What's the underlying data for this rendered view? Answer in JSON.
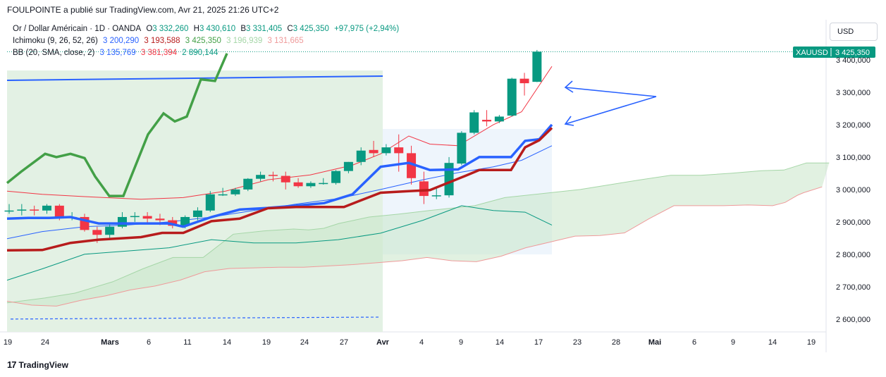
{
  "header": {
    "published": "FOULPOINTE a publié sur TradingView.com, Avr 21, 2025 21:26 UTC+2"
  },
  "legend": {
    "main": {
      "symbol": "Or / Dollar Américain · 1D · OANDA",
      "o_label": "O",
      "o": "3 332,260",
      "h_label": "H",
      "h": "3 430,610",
      "b_label": "B",
      "b": "3 331,405",
      "c_label": "C",
      "c": "3 425,350",
      "chg": "+97,975 (+2,94%)"
    },
    "ichimoku": {
      "label": "Ichimoku (9, 26, 52, 26)",
      "v1": "3 200,290",
      "v2": "3 193,588",
      "v3": "3 425,350",
      "v4": "3 196,939",
      "v5": "3 131,665"
    },
    "bb": {
      "label": "BB (20, SMA, close, 2)",
      "v1": "3 135,769",
      "v2": "3 381,394",
      "v3": "2 890,144"
    }
  },
  "currency_button": "USD",
  "price_label": {
    "symbol": "XAUUSD",
    "value": "3 425,350"
  },
  "branding": "TradingView",
  "colors": {
    "up": "#089981",
    "down": "#f23645",
    "tenkan": "#2962ff",
    "kijun": "#b71c1c",
    "chikou": "#43a047",
    "bb_basis": "#2962ff",
    "bb_upper": "#f23645",
    "bb_lower": "#089981",
    "cloud_fill": "#c8e6c9",
    "span_a": "#a5d6a7",
    "span_b": "#ef9a9a"
  },
  "chart_data": {
    "type": "candlestick",
    "y_ticks": [
      "3 400,000",
      "3 300,000",
      "3 200,000",
      "3 100,000",
      "3 000,000",
      "2 900,000",
      "2 800,000",
      "2 700,000",
      "2 600,000"
    ],
    "ylim": [
      2570,
      3510
    ],
    "x_ticks": [
      "19",
      "24",
      "Mars",
      "6",
      "11",
      "14",
      "19",
      "24",
      "27",
      "Avr",
      "4",
      "9",
      "14",
      "17",
      "23",
      "28",
      "Mai",
      "6",
      "9",
      "14",
      "19"
    ],
    "candles": [
      {
        "date": "2025-02-19",
        "o": 2935,
        "h": 2955,
        "l": 2925,
        "c": 2935
      },
      {
        "date": "2025-02-20",
        "o": 2935,
        "h": 2955,
        "l": 2920,
        "c": 2938
      },
      {
        "date": "2025-02-21",
        "o": 2938,
        "h": 2950,
        "l": 2920,
        "c": 2935
      },
      {
        "date": "2025-02-24",
        "o": 2935,
        "h": 2955,
        "l": 2925,
        "c": 2950
      },
      {
        "date": "2025-02-25",
        "o": 2950,
        "h": 2955,
        "l": 2905,
        "c": 2915
      },
      {
        "date": "2025-02-26",
        "o": 2915,
        "h": 2930,
        "l": 2905,
        "c": 2915
      },
      {
        "date": "2025-02-27",
        "o": 2915,
        "h": 2925,
        "l": 2870,
        "c": 2875
      },
      {
        "date": "2025-02-28",
        "o": 2875,
        "h": 2885,
        "l": 2835,
        "c": 2860
      },
      {
        "date": "2025-03-03",
        "o": 2860,
        "h": 2895,
        "l": 2850,
        "c": 2885
      },
      {
        "date": "2025-03-04",
        "o": 2885,
        "h": 2930,
        "l": 2880,
        "c": 2915
      },
      {
        "date": "2025-03-05",
        "o": 2915,
        "h": 2930,
        "l": 2900,
        "c": 2918
      },
      {
        "date": "2025-03-06",
        "o": 2918,
        "h": 2930,
        "l": 2895,
        "c": 2910
      },
      {
        "date": "2025-03-07",
        "o": 2910,
        "h": 2925,
        "l": 2890,
        "c": 2905
      },
      {
        "date": "2025-03-10",
        "o": 2905,
        "h": 2915,
        "l": 2880,
        "c": 2888
      },
      {
        "date": "2025-03-11",
        "o": 2888,
        "h": 2920,
        "l": 2880,
        "c": 2915
      },
      {
        "date": "2025-03-12",
        "o": 2915,
        "h": 2945,
        "l": 2905,
        "c": 2935
      },
      {
        "date": "2025-03-13",
        "o": 2935,
        "h": 2995,
        "l": 2930,
        "c": 2985
      },
      {
        "date": "2025-03-14",
        "o": 2985,
        "h": 3005,
        "l": 2980,
        "c": 2985
      },
      {
        "date": "2025-03-17",
        "o": 2985,
        "h": 3005,
        "l": 2980,
        "c": 3000
      },
      {
        "date": "2025-03-18",
        "o": 3000,
        "h": 3035,
        "l": 2995,
        "c": 3033
      },
      {
        "date": "2025-03-19",
        "o": 3033,
        "h": 3055,
        "l": 3025,
        "c": 3045
      },
      {
        "date": "2025-03-20",
        "o": 3045,
        "h": 3055,
        "l": 3025,
        "c": 3042
      },
      {
        "date": "2025-03-21",
        "o": 3042,
        "h": 3055,
        "l": 3000,
        "c": 3022
      },
      {
        "date": "2025-03-24",
        "o": 3022,
        "h": 3035,
        "l": 3005,
        "c": 3010
      },
      {
        "date": "2025-03-25",
        "o": 3010,
        "h": 3025,
        "l": 3005,
        "c": 3020
      },
      {
        "date": "2025-03-26",
        "o": 3020,
        "h": 3035,
        "l": 3015,
        "c": 3020
      },
      {
        "date": "2025-03-27",
        "o": 3020,
        "h": 3060,
        "l": 3015,
        "c": 3057
      },
      {
        "date": "2025-03-28",
        "o": 3057,
        "h": 3085,
        "l": 3050,
        "c": 3085
      },
      {
        "date": "2025-03-31",
        "o": 3085,
        "h": 3130,
        "l": 3075,
        "c": 3120
      },
      {
        "date": "2025-04-01",
        "o": 3122,
        "h": 3150,
        "l": 3100,
        "c": 3112
      },
      {
        "date": "2025-04-02",
        "o": 3112,
        "h": 3140,
        "l": 3105,
        "c": 3130
      },
      {
        "date": "2025-04-03",
        "o": 3130,
        "h": 3170,
        "l": 3055,
        "c": 3112
      },
      {
        "date": "2025-04-04",
        "o": 3112,
        "h": 3135,
        "l": 3015,
        "c": 3035
      },
      {
        "date": "2025-04-07",
        "o": 3025,
        "h": 3055,
        "l": 2955,
        "c": 2980
      },
      {
        "date": "2025-04-08",
        "o": 2980,
        "h": 3005,
        "l": 2970,
        "c": 2982
      },
      {
        "date": "2025-04-09",
        "o": 2982,
        "h": 3100,
        "l": 2975,
        "c": 3082
      },
      {
        "date": "2025-04-10",
        "o": 3080,
        "h": 3180,
        "l": 3075,
        "c": 3175
      },
      {
        "date": "2025-04-11",
        "o": 3175,
        "h": 3245,
        "l": 3170,
        "c": 3238
      },
      {
        "date": "2025-04-14",
        "o": 3215,
        "h": 3245,
        "l": 3195,
        "c": 3210
      },
      {
        "date": "2025-04-15",
        "o": 3210,
        "h": 3230,
        "l": 3205,
        "c": 3225
      },
      {
        "date": "2025-04-16",
        "o": 3228,
        "h": 3345,
        "l": 3225,
        "c": 3342
      },
      {
        "date": "2025-04-17",
        "o": 3342,
        "h": 3360,
        "l": 3290,
        "c": 3328
      },
      {
        "date": "2025-04-18",
        "o": 3332.26,
        "h": 3430.61,
        "l": 3331.405,
        "c": 3425.35
      }
    ]
  }
}
